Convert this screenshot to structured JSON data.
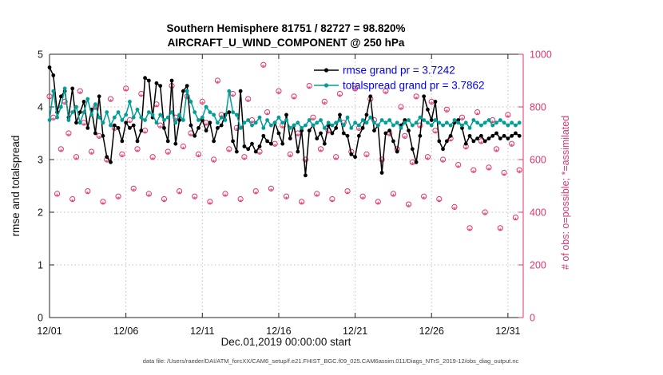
{
  "chart_data": {
    "type": "line",
    "title1": "Southern Hemisphere 81751 / 82727 = 98.820%",
    "title2": "AIRCRAFT_U_WIND_COMPONENT @ 250 hPa",
    "stats": {
      "assimilated_total": 81751,
      "possible_total": 82727,
      "assimilated_pct": "98.820%",
      "rmse_grand_mean": 3.7242,
      "totalspread_grand_mean": 3.7862
    },
    "xlabel": "Dec.01,2019 00:00:00 start",
    "ylabel_left": "rmse and totalspread",
    "ylabel_right": "# of obs: o=possible; *=assimilated",
    "source_note": "data file: /Users/raeder/DAI/ATM_forcXX/CAM6_setup/f.e21.FHIST_BGC.f09_025.CAM6assim.011/Diags_NTrS_2019-12/obs_diag_output.nc",
    "x_span_days": 31,
    "x_step_days": 0.25,
    "x_ticks": {
      "days": [
        0,
        5,
        10,
        15,
        20,
        25,
        30
      ],
      "labels": [
        "12/01",
        "12/06",
        "12/11",
        "12/16",
        "12/21",
        "12/26",
        "12/31"
      ]
    },
    "ylim_left": [
      0,
      5
    ],
    "yticks_left": [
      0,
      1,
      2,
      3,
      4,
      5
    ],
    "ylim_right": [
      0,
      1000
    ],
    "yticks_right": [
      0,
      200,
      400,
      600,
      800,
      1000
    ],
    "grid": true,
    "legend_position": "top-center-inside",
    "colors": {
      "rmse": "#000000",
      "totalspread": "#009e96",
      "obs": "#e0356f",
      "legend_text": "#0000ee",
      "grid": "#bfbfbf",
      "axis": "#262626"
    },
    "series": [
      {
        "name": "rmse",
        "legend": "rmse grand pr = 3.7242",
        "color": "#000000",
        "axis": "left",
        "marker": "dot",
        "values": [
          4.75,
          4.6,
          3.9,
          4.2,
          4.3,
          3.8,
          4.35,
          3.7,
          3.9,
          4.1,
          3.6,
          3.95,
          3.5,
          4.2,
          3.45,
          3.05,
          2.95,
          3.65,
          3.6,
          3.35,
          3.7,
          3.6,
          3.65,
          3.35,
          3.55,
          4.55,
          4.5,
          3.8,
          4.45,
          4.4,
          3.6,
          3.35,
          4.5,
          3.3,
          3.75,
          4.3,
          4.4,
          3.65,
          3.45,
          3.6,
          3.75,
          3.55,
          3.7,
          3.35,
          3.6,
          3.65,
          3.85,
          3.9,
          3.35,
          3.15,
          4.3,
          3.25,
          3.2,
          3.3,
          3.15,
          3.25,
          3.45,
          3.35,
          3.3,
          3.7,
          3.5,
          3.3,
          3.85,
          3.4,
          3.65,
          3.15,
          3.55,
          2.7,
          3.55,
          3.65,
          3.4,
          3.5,
          3.3,
          3.65,
          3.5,
          3.6,
          3.85,
          3.5,
          3.45,
          3.1,
          3.05,
          3.45,
          3.6,
          3.85,
          4.2,
          3.55,
          3.65,
          2.75,
          3.5,
          3.55,
          3.35,
          3.15,
          3.65,
          3.75,
          3.55,
          3.2,
          2.95,
          3.45,
          4.2,
          3.95,
          3.75,
          4.1,
          3.35,
          3.2,
          3.35,
          3.45,
          3.7,
          3.75,
          3.6,
          3.3,
          3.45,
          3.35,
          3.4,
          3.45,
          3.35,
          3.4,
          3.45,
          3.5,
          3.4,
          3.45,
          3.4,
          3.45,
          3.5,
          3.45
        ]
      },
      {
        "name": "totalspread",
        "legend": "totalspread grand pr = 3.7862",
        "color": "#009e96",
        "axis": "left",
        "marker": "dot",
        "values": [
          3.75,
          4.3,
          3.8,
          4.0,
          4.35,
          3.75,
          3.9,
          4.0,
          3.7,
          3.9,
          4.15,
          3.85,
          4.05,
          3.8,
          3.7,
          3.9,
          3.65,
          3.8,
          3.9,
          3.75,
          3.85,
          4.1,
          3.8,
          3.95,
          3.8,
          3.75,
          3.9,
          3.85,
          3.7,
          3.85,
          3.75,
          3.8,
          3.9,
          3.7,
          3.85,
          3.75,
          4.3,
          4.1,
          3.9,
          3.75,
          3.8,
          4.0,
          3.9,
          3.85,
          3.7,
          3.8,
          3.75,
          4.3,
          3.9,
          3.85,
          3.6,
          3.7,
          3.75,
          3.65,
          3.7,
          3.8,
          3.6,
          3.75,
          3.65,
          3.7,
          3.8,
          3.7,
          3.75,
          3.6,
          3.65,
          3.7,
          3.6,
          3.65,
          3.75,
          3.65,
          3.7,
          3.75,
          3.6,
          3.7,
          3.65,
          3.7,
          3.75,
          3.65,
          3.8,
          3.6,
          3.7,
          3.65,
          3.75,
          3.7,
          3.8,
          3.7,
          3.65,
          3.75,
          3.7,
          3.75,
          3.65,
          3.7,
          3.6,
          3.7,
          3.75,
          3.65,
          3.7,
          3.8,
          3.75,
          3.7,
          3.65,
          3.75,
          3.7,
          3.65,
          3.7,
          3.65,
          3.75,
          3.7,
          3.65,
          3.7,
          3.6,
          3.75,
          3.7,
          3.65,
          3.7,
          3.75,
          3.65,
          3.7,
          3.75,
          3.7,
          3.65,
          3.7,
          3.65,
          3.7
        ]
      },
      {
        "name": "obs-possible",
        "legend": "o=possible",
        "color": "#e0356f",
        "axis": "right",
        "marker": "o",
        "values": [
          840,
          760,
          470,
          640,
          820,
          700,
          450,
          610,
          860,
          740,
          480,
          630,
          800,
          690,
          440,
          600,
          830,
          720,
          460,
          620,
          870,
          750,
          490,
          640,
          850,
          710,
          470,
          610,
          810,
          730,
          450,
          630,
          880,
          760,
          480,
          650,
          840,
          700,
          460,
          620,
          820,
          740,
          440,
          600,
          900,
          770,
          470,
          640,
          850,
          720,
          450,
          610,
          830,
          750,
          480,
          630,
          960,
          780,
          490,
          660,
          860,
          730,
          460,
          620,
          840,
          700,
          440,
          600,
          880,
          760,
          470,
          640,
          820,
          710,
          450,
          610,
          850,
          740,
          480,
          630,
          870,
          720,
          460,
          620,
          830,
          750,
          440,
          600,
          860,
          700,
          470,
          640,
          800,
          690,
          430,
          590,
          840,
          730,
          460,
          610,
          820,
          710,
          450,
          600,
          790,
          680,
          420,
          580,
          760,
          650,
          340,
          560,
          780,
          670,
          400,
          570,
          750,
          640,
          340,
          550,
          770,
          660,
          380,
          560
        ]
      },
      {
        "name": "obs-assimilated",
        "legend": "*=assimilated",
        "color": "#e0356f",
        "axis": "right",
        "marker": "*",
        "values": [
          830,
          750,
          460,
          630,
          810,
          690,
          440,
          600,
          850,
          730,
          470,
          620,
          790,
          680,
          430,
          590,
          820,
          710,
          450,
          610,
          860,
          740,
          480,
          630,
          840,
          700,
          460,
          600,
          800,
          720,
          440,
          620,
          870,
          750,
          470,
          640,
          830,
          690,
          450,
          610,
          810,
          730,
          430,
          590,
          890,
          760,
          460,
          630,
          840,
          710,
          440,
          600,
          820,
          740,
          470,
          620,
          950,
          770,
          480,
          650,
          850,
          720,
          450,
          610,
          830,
          690,
          430,
          590,
          870,
          750,
          460,
          630,
          810,
          700,
          440,
          600,
          840,
          730,
          470,
          620,
          860,
          710,
          450,
          610,
          820,
          740,
          430,
          590,
          850,
          690,
          460,
          630,
          790,
          680,
          420,
          580,
          830,
          720,
          450,
          600,
          810,
          700,
          440,
          590,
          780,
          670,
          410,
          570,
          750,
          640,
          330,
          550,
          770,
          660,
          390,
          560,
          740,
          630,
          330,
          540,
          760,
          650,
          370,
          550
        ]
      }
    ]
  }
}
